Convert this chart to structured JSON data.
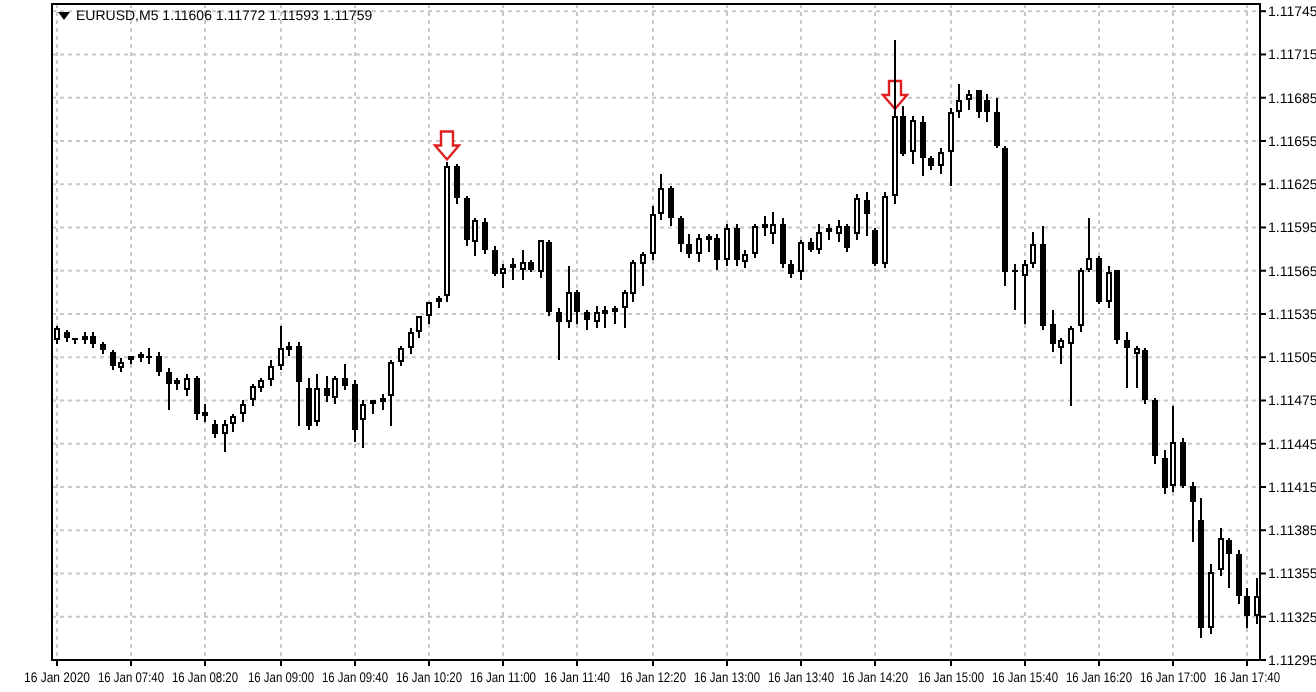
{
  "chart_data": {
    "type": "candlestick",
    "title": "EURUSD,M5  1.11606 1.11772 1.11593 1.11759",
    "x": [
      "2020-01-16T07:00",
      "2020-01-16T07:05",
      "2020-01-16T07:10",
      "2020-01-16T07:15",
      "2020-01-16T07:20",
      "2020-01-16T07:25",
      "2020-01-16T07:30",
      "2020-01-16T07:35",
      "2020-01-16T07:40",
      "2020-01-16T07:45",
      "2020-01-16T07:50",
      "2020-01-16T07:55",
      "2020-01-16T08:00",
      "2020-01-16T08:05",
      "2020-01-16T08:10",
      "2020-01-16T08:15",
      "2020-01-16T08:20",
      "2020-01-16T08:25",
      "2020-01-16T08:30",
      "2020-01-16T08:35",
      "2020-01-16T08:40",
      "2020-01-16T08:45",
      "2020-01-16T08:50",
      "2020-01-16T08:55",
      "2020-01-16T09:00",
      "2020-01-16T09:05",
      "2020-01-16T09:10",
      "2020-01-16T09:15",
      "2020-01-16T09:20",
      "2020-01-16T09:25",
      "2020-01-16T09:30",
      "2020-01-16T09:35",
      "2020-01-16T09:40",
      "2020-01-16T09:45",
      "2020-01-16T09:50",
      "2020-01-16T09:55",
      "2020-01-16T10:00",
      "2020-01-16T10:05",
      "2020-01-16T10:10",
      "2020-01-16T10:15",
      "2020-01-16T10:20",
      "2020-01-16T10:25",
      "2020-01-16T10:30",
      "2020-01-16T10:35",
      "2020-01-16T10:40",
      "2020-01-16T10:45",
      "2020-01-16T10:50",
      "2020-01-16T10:55",
      "2020-01-16T11:00",
      "2020-01-16T11:05",
      "2020-01-16T11:10",
      "2020-01-16T11:15",
      "2020-01-16T11:20",
      "2020-01-16T11:25",
      "2020-01-16T11:30",
      "2020-01-16T11:35",
      "2020-01-16T11:40",
      "2020-01-16T11:45",
      "2020-01-16T11:50",
      "2020-01-16T11:55",
      "2020-01-16T12:00",
      "2020-01-16T12:05",
      "2020-01-16T12:10",
      "2020-01-16T12:15",
      "2020-01-16T12:20",
      "2020-01-16T12:25",
      "2020-01-16T12:30",
      "2020-01-16T12:35",
      "2020-01-16T12:40",
      "2020-01-16T12:45",
      "2020-01-16T12:50",
      "2020-01-16T12:55",
      "2020-01-16T13:00",
      "2020-01-16T13:05",
      "2020-01-16T13:10",
      "2020-01-16T13:15",
      "2020-01-16T13:20",
      "2020-01-16T13:25",
      "2020-01-16T13:30",
      "2020-01-16T13:35",
      "2020-01-16T13:40",
      "2020-01-16T13:45",
      "2020-01-16T13:50",
      "2020-01-16T13:55",
      "2020-01-16T14:00",
      "2020-01-16T14:05",
      "2020-01-16T14:10",
      "2020-01-16T14:15",
      "2020-01-16T14:20",
      "2020-01-16T14:25",
      "2020-01-16T14:30",
      "2020-01-16T14:35",
      "2020-01-16T14:40",
      "2020-01-16T14:45",
      "2020-01-16T14:50",
      "2020-01-16T14:55",
      "2020-01-16T15:00",
      "2020-01-16T15:05",
      "2020-01-16T15:10",
      "2020-01-16T15:15",
      "2020-01-16T15:20",
      "2020-01-16T15:25",
      "2020-01-16T15:30",
      "2020-01-16T15:35",
      "2020-01-16T15:40",
      "2020-01-16T15:45",
      "2020-01-16T15:50",
      "2020-01-16T15:55",
      "2020-01-16T16:00",
      "2020-01-16T16:05",
      "2020-01-16T16:10",
      "2020-01-16T16:15",
      "2020-01-16T16:20",
      "2020-01-16T16:25",
      "2020-01-16T16:30",
      "2020-01-16T16:35",
      "2020-01-16T16:40",
      "2020-01-16T16:45",
      "2020-01-16T16:50",
      "2020-01-16T16:55",
      "2020-01-16T17:00",
      "2020-01-16T17:05",
      "2020-01-16T17:10",
      "2020-01-16T17:15",
      "2020-01-16T17:20",
      "2020-01-16T17:25",
      "2020-01-16T17:30",
      "2020-01-16T17:35",
      "2020-01-16T17:40",
      "2020-01-16T17:45"
    ],
    "xlim": [
      "2020-01-16T06:58",
      "2020-01-16T17:47"
    ],
    "xticks": [
      {
        "value": "2020-01-16T07:00",
        "label": "16 Jan 2020"
      },
      {
        "value": "2020-01-16T07:40",
        "label": "16 Jan 07:40"
      },
      {
        "value": "2020-01-16T08:20",
        "label": "16 Jan 08:20"
      },
      {
        "value": "2020-01-16T09:00",
        "label": "16 Jan 09:00"
      },
      {
        "value": "2020-01-16T09:40",
        "label": "16 Jan 09:40"
      },
      {
        "value": "2020-01-16T10:20",
        "label": "16 Jan 10:20"
      },
      {
        "value": "2020-01-16T11:00",
        "label": "16 Jan 11:00"
      },
      {
        "value": "2020-01-16T11:40",
        "label": "16 Jan 11:40"
      },
      {
        "value": "2020-01-16T12:20",
        "label": "16 Jan 12:20"
      },
      {
        "value": "2020-01-16T13:00",
        "label": "16 Jan 13:00"
      },
      {
        "value": "2020-01-16T13:40",
        "label": "16 Jan 13:40"
      },
      {
        "value": "2020-01-16T14:20",
        "label": "16 Jan 14:20"
      },
      {
        "value": "2020-01-16T15:00",
        "label": "16 Jan 15:00"
      },
      {
        "value": "2020-01-16T15:40",
        "label": "16 Jan 15:40"
      },
      {
        "value": "2020-01-16T16:20",
        "label": "16 Jan 16:20"
      },
      {
        "value": "2020-01-16T17:00",
        "label": "16 Jan 17:00"
      },
      {
        "value": "2020-01-16T17:40",
        "label": "16 Jan 17:40"
      }
    ],
    "ohlc": [
      [
        1.11517,
        1.11527,
        1.11516,
        1.11525
      ],
      [
        1.11523,
        1.11524,
        1.11517,
        1.11518
      ],
      [
        1.11519,
        1.11519,
        1.11515,
        1.11518
      ],
      [
        1.11517,
        1.11522,
        1.11515,
        1.1152
      ],
      [
        1.1152,
        1.11522,
        1.11513,
        1.11514
      ],
      [
        1.11514,
        1.11516,
        1.11509,
        1.1151
      ],
      [
        1.11508,
        1.1151,
        1.11498,
        1.11499
      ],
      [
        1.11498,
        1.11504,
        1.11496,
        1.11502
      ],
      [
        1.11503,
        1.11506,
        1.11501,
        1.11504
      ],
      [
        1.11505,
        1.11509,
        1.11503,
        1.11506
      ],
      [
        1.11506,
        1.11511,
        1.11502,
        1.11505
      ],
      [
        1.11506,
        1.11508,
        1.11494,
        1.11495
      ],
      [
        1.11495,
        1.11497,
        1.1147,
        1.11487
      ],
      [
        1.11489,
        1.1149,
        1.11484,
        1.11487
      ],
      [
        1.11482,
        1.11493,
        1.1148,
        1.1149
      ],
      [
        1.1149,
        1.11492,
        1.11463,
        1.11466
      ],
      [
        1.11467,
        1.11472,
        1.11462,
        1.11464
      ],
      [
        1.11459,
        1.11461,
        1.1145,
        1.11452
      ],
      [
        1.11452,
        1.11462,
        1.11441,
        1.11459
      ],
      [
        1.11459,
        1.11466,
        1.11455,
        1.11464
      ],
      [
        1.11466,
        1.11476,
        1.11462,
        1.11473
      ],
      [
        1.11475,
        1.11487,
        1.11472,
        1.11485
      ],
      [
        1.11484,
        1.1149,
        1.11482,
        1.11489
      ],
      [
        1.11489,
        1.11503,
        1.11487,
        1.11499
      ],
      [
        1.11499,
        1.11527,
        1.11497,
        1.11511
      ],
      [
        1.11511,
        1.11516,
        1.11507,
        1.11512
      ],
      [
        1.11513,
        1.11516,
        1.11459,
        1.11488
      ],
      [
        1.11483,
        1.11491,
        1.11456,
        1.11457
      ],
      [
        1.1146,
        1.11493,
        1.11458,
        1.11483
      ],
      [
        1.11484,
        1.11492,
        1.11476,
        1.11478
      ],
      [
        1.11477,
        1.11492,
        1.11474,
        1.1149
      ],
      [
        1.1149,
        1.115,
        1.11484,
        1.11485
      ],
      [
        1.11487,
        1.11489,
        1.11448,
        1.11455
      ],
      [
        1.11462,
        1.11475,
        1.11444,
        1.11473
      ],
      [
        1.11473,
        1.11476,
        1.11467,
        1.11474
      ],
      [
        1.11474,
        1.1148,
        1.1147,
        1.11476
      ],
      [
        1.11478,
        1.11503,
        1.11459,
        1.11502
      ],
      [
        1.11502,
        1.11513,
        1.115,
        1.11512
      ],
      [
        1.11511,
        1.11525,
        1.11508,
        1.11523
      ],
      [
        1.11523,
        1.11534,
        1.1152,
        1.11533
      ],
      [
        1.11533,
        1.11544,
        1.1153,
        1.11543
      ],
      [
        1.11543,
        1.11548,
        1.1154,
        1.11545
      ],
      [
        1.11547,
        1.11641,
        1.11545,
        1.11638
      ],
      [
        1.11638,
        1.11639,
        1.11612,
        1.11615
      ],
      [
        1.11615,
        1.11617,
        1.11584,
        1.11586
      ],
      [
        1.11585,
        1.11601,
        1.11576,
        1.116
      ],
      [
        1.11599,
        1.11601,
        1.11578,
        1.11579
      ],
      [
        1.1158,
        1.11582,
        1.11563,
        1.11563
      ],
      [
        1.11563,
        1.11569,
        1.11554,
        1.11567
      ],
      [
        1.11567,
        1.11574,
        1.1156,
        1.11568
      ],
      [
        1.11565,
        1.1158,
        1.1156,
        1.11571
      ],
      [
        1.11571,
        1.11573,
        1.11565,
        1.11565
      ],
      [
        1.11564,
        1.11587,
        1.11562,
        1.11586
      ],
      [
        1.11585,
        1.11587,
        1.11535,
        1.11537
      ],
      [
        1.11537,
        1.11539,
        1.11505,
        1.11529
      ],
      [
        1.11529,
        1.11568,
        1.11527,
        1.1155
      ],
      [
        1.1155,
        1.11552,
        1.1153,
        1.11536
      ],
      [
        1.11536,
        1.11538,
        1.11525,
        1.11531
      ],
      [
        1.1153,
        1.11541,
        1.11527,
        1.11536
      ],
      [
        1.11535,
        1.1154,
        1.11527,
        1.11537
      ],
      [
        1.11536,
        1.11541,
        1.1153,
        1.11539
      ],
      [
        1.11539,
        1.11551,
        1.11527,
        1.1155
      ],
      [
        1.11549,
        1.11573,
        1.11545,
        1.11571
      ],
      [
        1.1157,
        1.11578,
        1.11556,
        1.11576
      ],
      [
        1.11576,
        1.1161,
        1.11574,
        1.11604
      ],
      [
        1.11604,
        1.11632,
        1.11602,
        1.11622
      ],
      [
        1.11622,
        1.11624,
        1.11598,
        1.11601
      ],
      [
        1.11601,
        1.11603,
        1.11579,
        1.11583
      ],
      [
        1.11583,
        1.1159,
        1.11575,
        1.11576
      ],
      [
        1.11576,
        1.11591,
        1.11573,
        1.11588
      ],
      [
        1.11587,
        1.1159,
        1.1158,
        1.11588
      ],
      [
        1.11588,
        1.1159,
        1.11567,
        1.11573
      ],
      [
        1.11573,
        1.11597,
        1.1157,
        1.11595
      ],
      [
        1.11595,
        1.11597,
        1.1157,
        1.11573
      ],
      [
        1.11571,
        1.1158,
        1.11568,
        1.11577
      ],
      [
        1.11577,
        1.11598,
        1.11575,
        1.11596
      ],
      [
        1.11597,
        1.11603,
        1.1159,
        1.11594
      ],
      [
        1.11591,
        1.11606,
        1.11585,
        1.11597
      ],
      [
        1.11598,
        1.11601,
        1.11568,
        1.11569
      ],
      [
        1.1157,
        1.11572,
        1.11562,
        1.11563
      ],
      [
        1.11564,
        1.11586,
        1.1156,
        1.11585
      ],
      [
        1.11585,
        1.11588,
        1.11579,
        1.1158
      ],
      [
        1.1158,
        1.11597,
        1.11578,
        1.11592
      ],
      [
        1.11592,
        1.11598,
        1.11588,
        1.11593
      ],
      [
        1.1159,
        1.116,
        1.11587,
        1.11596
      ],
      [
        1.11596,
        1.11598,
        1.11579,
        1.11581
      ],
      [
        1.1159,
        1.11618,
        1.11588,
        1.11615
      ],
      [
        1.11614,
        1.1162,
        1.1159,
        1.11605
      ],
      [
        1.11593,
        1.11595,
        1.1157,
        1.1157
      ],
      [
        1.1157,
        1.1162,
        1.11568,
        1.11617
      ],
      [
        1.11617,
        1.11725,
        1.11612,
        1.11673
      ],
      [
        1.11672,
        1.11679,
        1.11646,
        1.11646
      ],
      [
        1.11647,
        1.11672,
        1.1164,
        1.11669
      ],
      [
        1.11668,
        1.11672,
        1.11632,
        1.11643
      ],
      [
        1.11643,
        1.11645,
        1.11636,
        1.11638
      ],
      [
        1.11638,
        1.1165,
        1.11634,
        1.11648
      ],
      [
        1.11647,
        1.11678,
        1.11625,
        1.11675
      ],
      [
        1.11675,
        1.11695,
        1.11672,
        1.11683
      ],
      [
        1.11683,
        1.1169,
        1.11678,
        1.11688
      ],
      [
        1.1169,
        1.11691,
        1.11672,
        1.11675
      ],
      [
        1.11683,
        1.11687,
        1.1167,
        1.11675
      ],
      [
        1.11675,
        1.11685,
        1.11651,
        1.11651
      ],
      [
        1.1165,
        1.11651,
        1.11556,
        1.11564
      ],
      [
        1.11566,
        1.1157,
        1.11539,
        1.11564
      ],
      [
        1.11561,
        1.11572,
        1.11529,
        1.1157
      ],
      [
        1.1157,
        1.11592,
        1.11568,
        1.11583
      ],
      [
        1.11583,
        1.11596,
        1.11525,
        1.11527
      ],
      [
        1.11528,
        1.11538,
        1.1151,
        1.11514
      ],
      [
        1.11512,
        1.11518,
        1.11502,
        1.11517
      ],
      [
        1.11514,
        1.11526,
        1.11472,
        1.11525
      ],
      [
        1.11526,
        1.11567,
        1.11524,
        1.11566
      ],
      [
        1.11566,
        1.11601,
        1.11565,
        1.11574
      ],
      [
        1.11574,
        1.11575,
        1.11543,
        1.11544
      ],
      [
        1.11543,
        1.11568,
        1.11541,
        1.11564
      ],
      [
        1.11565,
        1.11566,
        1.11516,
        1.11517
      ],
      [
        1.11517,
        1.11522,
        1.11485,
        1.11511
      ],
      [
        1.11507,
        1.11513,
        1.11485,
        1.11511
      ],
      [
        1.1151,
        1.11511,
        1.11474,
        1.11475
      ],
      [
        1.11476,
        1.11477,
        1.11432,
        1.11437
      ],
      [
        1.11435,
        1.1144,
        1.11412,
        1.11414
      ],
      [
        1.11415,
        1.11471,
        1.11413,
        1.11446
      ],
      [
        1.11446,
        1.11449,
        1.11415,
        1.11416
      ],
      [
        1.11416,
        1.11418,
        1.11378,
        1.11405
      ],
      [
        1.11392,
        1.11407,
        1.11311,
        1.11317
      ],
      [
        1.11317,
        1.11362,
        1.11314,
        1.11356
      ],
      [
        1.11357,
        1.11386,
        1.11354,
        1.1138
      ],
      [
        1.11378,
        1.1138,
        1.11347,
        1.11369
      ],
      [
        1.11369,
        1.11371,
        1.11335,
        1.1134
      ],
      [
        1.1134,
        1.11345,
        1.11318,
        1.11326
      ],
      [
        1.11326,
        1.11352,
        1.11322,
        1.1134
      ]
    ],
    "ylim": [
      1.11295,
      1.1175
    ],
    "yticks": [
      1.11295,
      1.11325,
      1.11355,
      1.11385,
      1.11415,
      1.11445,
      1.11475,
      1.11505,
      1.11535,
      1.11565,
      1.11595,
      1.11625,
      1.11655,
      1.11685,
      1.11715,
      1.11745
    ],
    "grid": true
  }
}
